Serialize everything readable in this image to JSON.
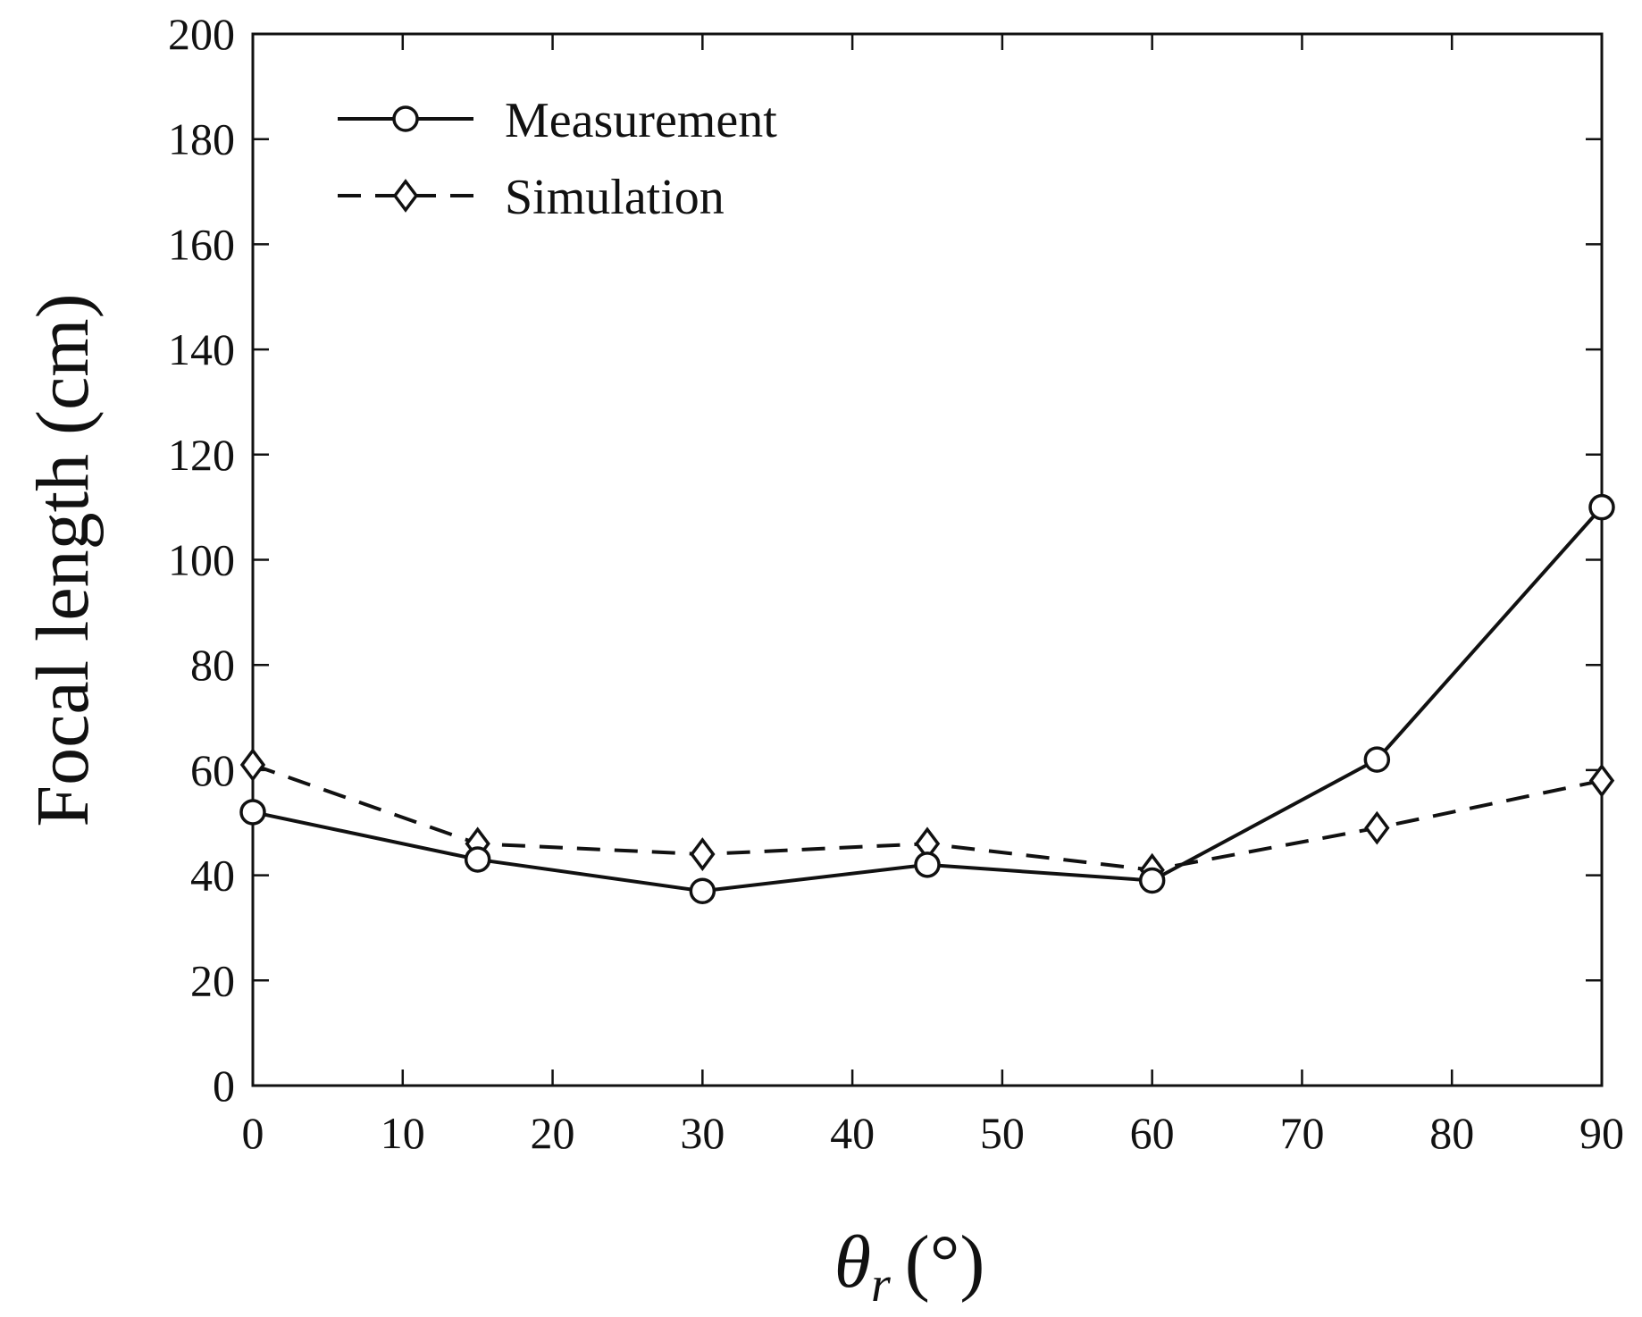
{
  "chart_data": {
    "type": "line",
    "title": "",
    "xlabel": "θr (°)",
    "xlabel_parts": {
      "symbol": "θ",
      "subscript": "r",
      "unit": "(°)"
    },
    "ylabel": "Focal length (cm)",
    "xlim": [
      0,
      90
    ],
    "ylim": [
      0,
      200
    ],
    "xticks": [
      0,
      10,
      20,
      30,
      40,
      50,
      60,
      70,
      80,
      90
    ],
    "yticks": [
      0,
      20,
      40,
      60,
      80,
      100,
      120,
      140,
      160,
      180,
      200
    ],
    "grid": false,
    "legend_position": "top-left",
    "series": [
      {
        "name": "Measurement",
        "line_style": "solid",
        "marker": "circle",
        "color": "#111111",
        "x": [
          0,
          15,
          30,
          45,
          60,
          75,
          90
        ],
        "y": [
          52,
          43,
          37,
          42,
          39,
          62,
          110
        ]
      },
      {
        "name": "Simulation",
        "line_style": "dashed",
        "marker": "diamond",
        "color": "#111111",
        "x": [
          0,
          15,
          30,
          45,
          60,
          75,
          90
        ],
        "y": [
          61,
          46,
          44,
          46,
          41,
          49,
          58
        ]
      }
    ]
  }
}
